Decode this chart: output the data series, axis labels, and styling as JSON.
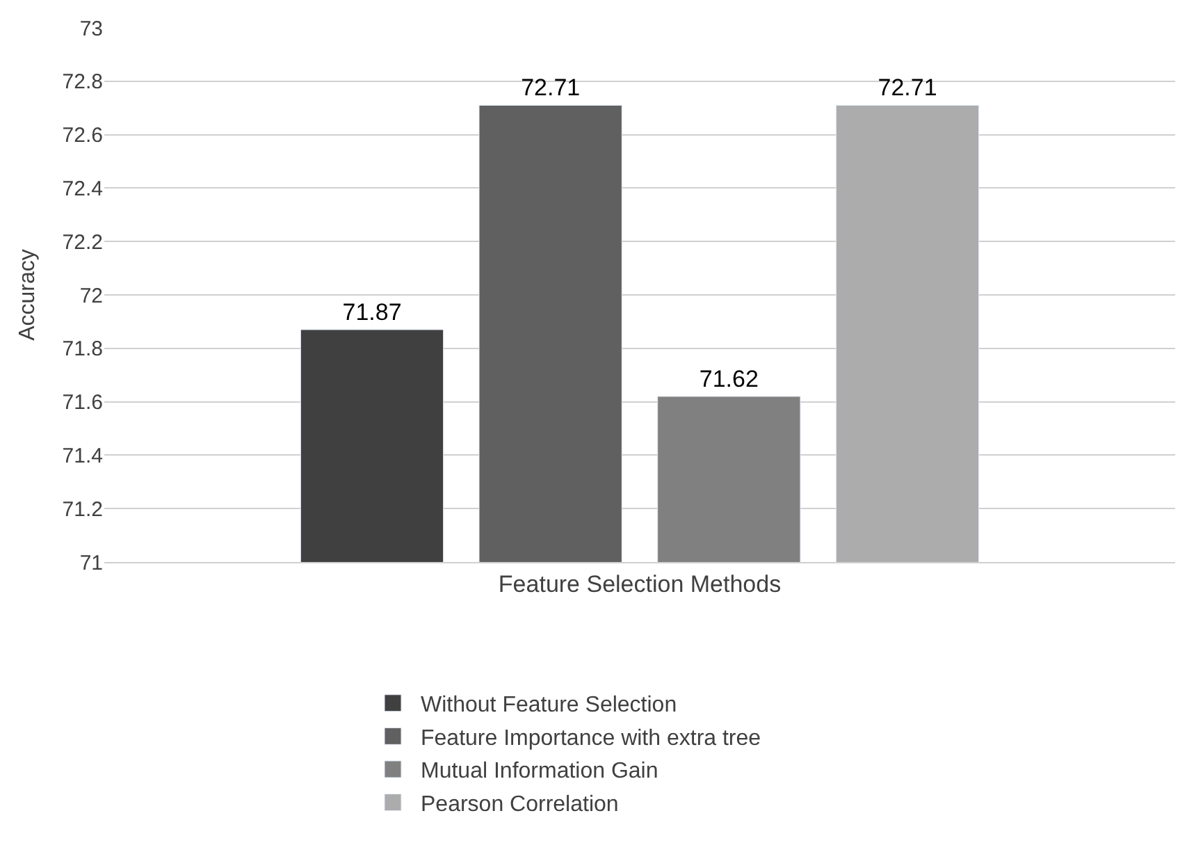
{
  "chart_data": {
    "type": "bar",
    "ylabel": "Accuracy",
    "categories": [
      "Feature Selection Methods"
    ],
    "series": [
      {
        "name": "Without Feature Selection",
        "color": "#404040",
        "values": [
          71.87
        ]
      },
      {
        "name": "Feature Importance with extra tree",
        "color": "#606060",
        "values": [
          72.71
        ]
      },
      {
        "name": "Mutual Information Gain",
        "color": "#808080",
        "values": [
          71.62
        ]
      },
      {
        "name": "Pearson Correlation",
        "color": "#acacac",
        "values": [
          72.71
        ]
      }
    ],
    "ylim": [
      71,
      73
    ],
    "yticks": [
      {
        "value": 71,
        "label": "71"
      },
      {
        "value": 71.2,
        "label": "71.2"
      },
      {
        "value": 71.4,
        "label": "71.4"
      },
      {
        "value": 71.6,
        "label": "71.6"
      },
      {
        "value": 71.8,
        "label": "71.8"
      },
      {
        "value": 72,
        "label": "72"
      },
      {
        "value": 72.2,
        "label": "72.2"
      },
      {
        "value": 72.4,
        "label": "72.4"
      },
      {
        "value": 72.6,
        "label": "72.6"
      },
      {
        "value": 72.8,
        "label": "72.8"
      },
      {
        "value": 73,
        "label": "73"
      }
    ],
    "grid": "y",
    "legend": "bottom",
    "data_labels": true
  }
}
